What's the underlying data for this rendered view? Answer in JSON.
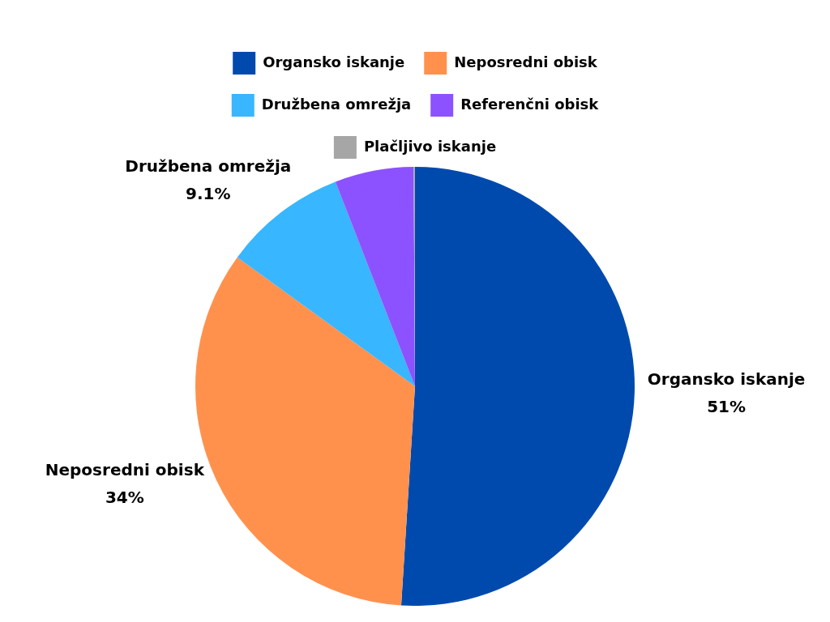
{
  "chart_data": {
    "type": "pie",
    "categories": [
      "Organsko iskanje",
      "Neposredni obisk",
      "Družbena omrežja",
      "Referenčni obisk",
      "Plačljivo iskanje"
    ],
    "values": [
      51,
      34,
      9.1,
      5.8,
      0.1
    ],
    "colors": [
      "#004aad",
      "#ff914d",
      "#38b6ff",
      "#8c52ff",
      "#a6a6a6"
    ],
    "value_labels": [
      "51%",
      "34%",
      "9.1%",
      null,
      null
    ],
    "legend": "top"
  }
}
